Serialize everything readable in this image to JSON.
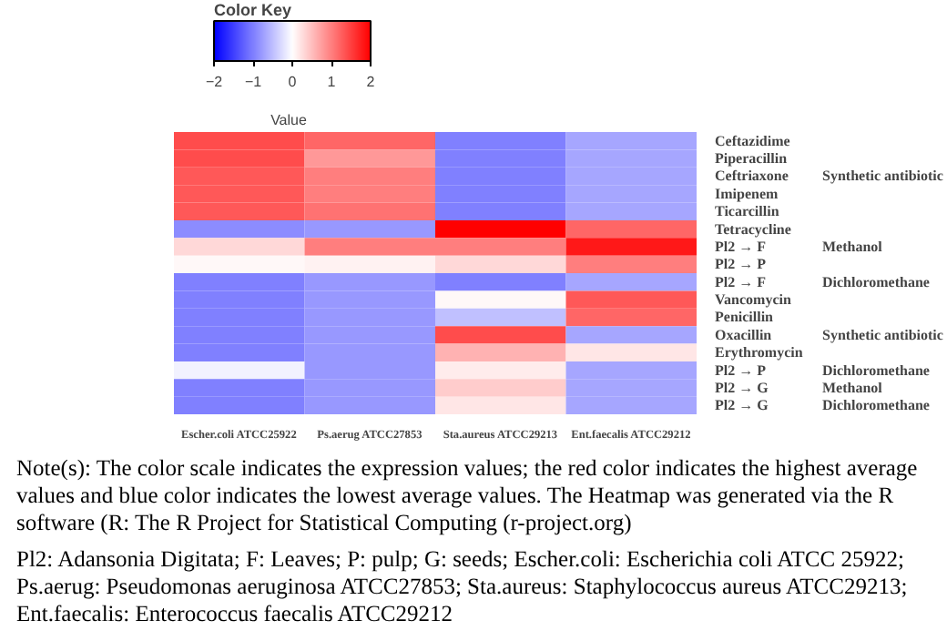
{
  "chart_data": {
    "type": "heatmap",
    "legend_title": "Color Key",
    "clabel": "Value",
    "categories": [
      "Escher.coli ATCC25922",
      "Ps.aerug ATCC27853",
      "Sta.aureus ATCC29213",
      "Ent.faecalis ATCC29212"
    ],
    "y_categories": [
      "Ceftazidime",
      "Piperacillin",
      "Ceftriaxone",
      "Imipenem",
      "Ticarcillin",
      "Tetracycline",
      "Pl2 → F",
      "Pl2 → P",
      "Pl2 → F",
      "Vancomycin",
      "Penicillin",
      "Oxacillin",
      "Erythromycin",
      "Pl2 → P",
      "Pl2 → G",
      "Pl2 → G"
    ],
    "y2_categories": [
      null,
      null,
      "Synthetic antibiotic",
      null,
      null,
      null,
      "Methanol",
      null,
      "Dichloromethane",
      null,
      null,
      "Synthetic antibiotic",
      null,
      "Dichloromethane",
      "Methanol",
      "Dichloromethane"
    ],
    "cells": [
      [
        1.4,
        1.2,
        -1.0,
        -0.7
      ],
      [
        1.4,
        0.8,
        -1.0,
        -0.7
      ],
      [
        1.3,
        1.0,
        -1.0,
        -0.7
      ],
      [
        1.3,
        1.0,
        -1.0,
        -0.7
      ],
      [
        1.3,
        1.1,
        -1.0,
        -0.7
      ],
      [
        -0.9,
        -0.8,
        2.0,
        1.2
      ],
      [
        0.3,
        1.0,
        1.0,
        1.8
      ],
      [
        0.05,
        0.1,
        0.3,
        1.0
      ],
      [
        -1.0,
        -0.8,
        -1.0,
        -0.7
      ],
      [
        -1.0,
        -0.8,
        0.05,
        1.3
      ],
      [
        -1.0,
        -0.8,
        -0.5,
        1.2
      ],
      [
        -1.0,
        -0.8,
        1.4,
        -0.7
      ],
      [
        -1.0,
        -0.8,
        0.6,
        0.2
      ],
      [
        -0.1,
        -0.8,
        0.15,
        -0.7
      ],
      [
        -1.0,
        -0.8,
        0.4,
        -0.7
      ],
      [
        -1.0,
        -0.8,
        0.2,
        -0.7
      ]
    ],
    "clim": [
      -2,
      2
    ],
    "cticks": [
      -2,
      -1,
      0,
      1,
      2
    ],
    "annotations": [
      "Note(s): The color scale indicates the expression values; the red color indicates the highest average values and blue color indicates the lowest average values. The Heatmap was generated via the R software (R: The R Project for Statistical Computing (r-project.org)",
      "Pl2: Adansonia Digitata; F: Leaves; P: pulp; G: seeds; Escher.coli: Escherichia coli ATCC 25922; Ps.aerug: Pseudomonas aeruginosa ATCC27853; Sta.aureus: Staphylococcus aureus ATCC29213; Ent.faecalis: Enterococcus faecalis ATCC29212"
    ]
  }
}
